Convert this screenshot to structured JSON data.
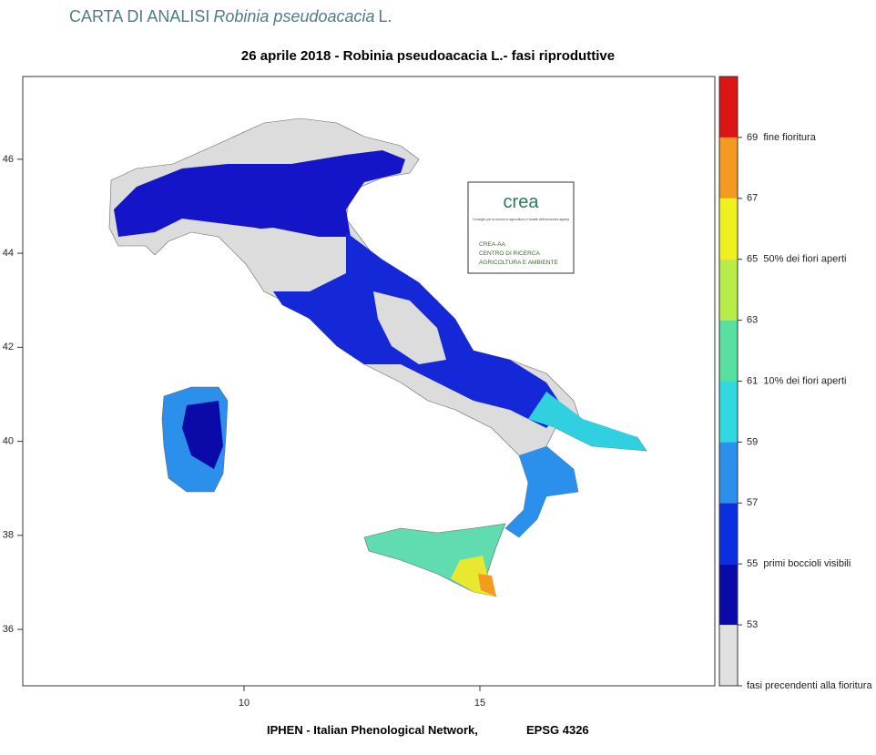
{
  "header": {
    "title_prefix": "CARTA DI ANALISI",
    "title_species": "Robinia pseudoacacia",
    "title_suffix": "L."
  },
  "map": {
    "title": "26 aprile 2018 - Robinia pseudoacacia L.- fasi riproduttive",
    "xlim": [
      5.31,
      19.98
    ],
    "ylim": [
      34.8,
      47.76
    ],
    "xticks": [
      10,
      15
    ],
    "yticks": [
      36,
      38,
      40,
      42,
      44,
      46
    ]
  },
  "logo": {
    "name": "crea",
    "tagline": "Consiglio per la ricerca in agricoltura e l'analisi dell'economia agraria",
    "lines": [
      "CREA-AA",
      "CENTRO DI RICERCA",
      "AGRICOLTURA E AMBIENTE"
    ]
  },
  "colorbar": {
    "lim": [
      51,
      71
    ],
    "bounds": [
      51,
      53,
      55,
      57,
      59,
      61,
      63,
      65,
      67,
      69,
      71
    ],
    "colors": [
      "#e0e0e0",
      "#0a0aa8",
      "#0a2ee0",
      "#2a90ec",
      "#30d8e0",
      "#58e0a0",
      "#b8ec48",
      "#f0f020",
      "#f59a20",
      "#dc1414"
    ],
    "ticks": [
      {
        "value": 69,
        "label": "69  fine fioritura"
      },
      67,
      {
        "value": 65,
        "label": "65  50% dei fiori aperti"
      },
      63,
      {
        "value": 61,
        "label": "61  10% dei fiori aperti"
      },
      59,
      57,
      {
        "value": 55,
        "label": "55  primi boccioli visibili"
      },
      53,
      {
        "value": 51,
        "label": "fasi precendenti alla fioritura"
      }
    ]
  },
  "footer": {
    "network": "IPHEN - Italian Phenological Network,",
    "projection": "EPSG 4326"
  }
}
